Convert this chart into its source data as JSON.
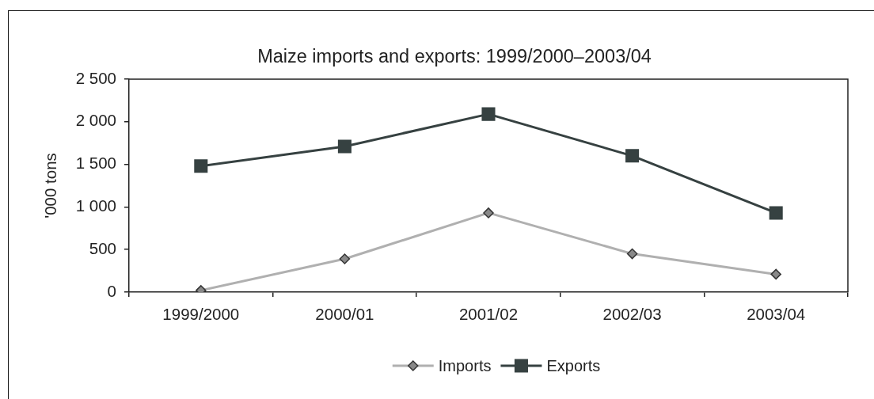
{
  "chart_data": {
    "type": "line",
    "title": "Maize imports and exports: 1999/2000–2003/04",
    "ylabel": "'000 tons",
    "categories": [
      "1999/2000",
      "2000/01",
      "2001/02",
      "2002/03",
      "2003/04"
    ],
    "series": [
      {
        "name": "Imports",
        "color": "#b0b0b0",
        "marker": "diamond",
        "values": [
          20,
          390,
          930,
          450,
          210
        ]
      },
      {
        "name": "Exports",
        "color": "#364141",
        "marker": "square",
        "values": [
          1480,
          1710,
          2090,
          1600,
          930
        ]
      }
    ],
    "ylim": [
      0,
      2500
    ],
    "yticks": [
      0,
      500,
      {
        "value": 1000,
        "label": "1 000"
      },
      {
        "value": 1500,
        "label": "1 500"
      },
      {
        "value": 2000,
        "label": "2 000"
      },
      {
        "value": 2500,
        "label": "2 500"
      }
    ],
    "legend": "bottom",
    "line_style": "solid"
  }
}
